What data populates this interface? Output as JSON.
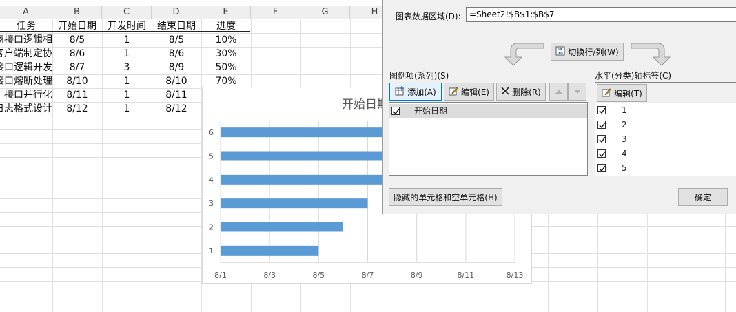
{
  "sheet": {
    "columns": [
      "A",
      "B",
      "C",
      "D",
      "E",
      "F",
      "G",
      "H"
    ],
    "headers": [
      "任务",
      "开始日期",
      "开发时间",
      "结束日期",
      "进度"
    ],
    "rows": [
      [
        "商接口逻辑相",
        "8/5",
        "1",
        "8/5",
        "10%"
      ],
      [
        "客户端制定协",
        "8/6",
        "1",
        "8/6",
        "30%"
      ],
      [
        "接口逻辑开发",
        "8/7",
        "3",
        "8/9",
        "50%"
      ],
      [
        "接口熔断处理",
        "8/10",
        "1",
        "8/10",
        "70%"
      ],
      [
        "接口并行化",
        "8/11",
        "1",
        "8/11",
        ""
      ],
      [
        "日志格式设计",
        "8/12",
        "1",
        "8/12",
        ""
      ]
    ]
  },
  "chart_data": {
    "type": "bar",
    "orientation": "horizontal",
    "title": "开始日期",
    "categories": [
      "1",
      "2",
      "3",
      "4",
      "5",
      "6"
    ],
    "series": [
      {
        "name": "开始日期",
        "values": [
          "8/5",
          "8/6",
          "8/7",
          "8/10",
          "8/11",
          "8/12"
        ],
        "color": "#5b9bd5"
      }
    ],
    "xticks": [
      "8/1",
      "8/3",
      "8/5",
      "8/7",
      "8/9",
      "8/11",
      "8/13"
    ],
    "xlim": [
      "8/1",
      "8/13"
    ],
    "grid": true,
    "legend": "none"
  },
  "dialog": {
    "range_label": "图表数据区域(D):",
    "range_value": "=Sheet2!$B$1:$B$7",
    "switch_label": "切换行/列(W)",
    "legend_label": "图例项(系列)(S)",
    "add_label": "添加(A)",
    "edit_label": "编辑(E)",
    "delete_label": "删除(R)",
    "series_items": [
      {
        "label": "开始日期",
        "checked": true
      }
    ],
    "axis_label": "水平(分类)轴标签(C)",
    "axis_edit_label": "编辑(T)",
    "axis_items": [
      "1",
      "2",
      "3",
      "4",
      "5"
    ],
    "hidden_cells_label": "隐藏的单元格和空单元格(H)",
    "ok_label": "确定"
  }
}
